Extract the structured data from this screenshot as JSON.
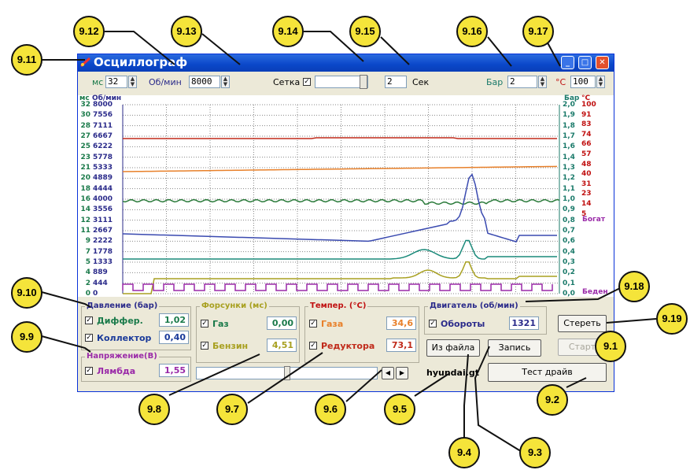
{
  "window": {
    "title": "Осциллограф",
    "min_glyph": "_",
    "max_glyph": "□",
    "close_glyph": "✕"
  },
  "toolbar": {
    "ms_label": "мс",
    "ms_value": "32",
    "rpm_label": "Об/мин",
    "rpm_value": "8000",
    "grid_label": "Сетка",
    "grid_checked": "✓",
    "sec_value": "2",
    "sec_label": "Сек",
    "bar_label": "Бар",
    "bar_value": "2",
    "temp_label": "°С",
    "temp_value": "100"
  },
  "plot": {
    "left_headers": {
      "ms": "мс",
      "rpm": "Об/мин"
    },
    "right_headers": {
      "bar": "Бар",
      "temp": "°С"
    },
    "ms_ticks": [
      "32",
      "30",
      "28",
      "27",
      "25",
      "23",
      "21",
      "20",
      "18",
      "16",
      "14",
      "12",
      "11",
      "9",
      "7",
      "5",
      "4",
      "2",
      "0"
    ],
    "rpm_ticks": [
      "8000",
      "7556",
      "7111",
      "6667",
      "6222",
      "5778",
      "5333",
      "4889",
      "4444",
      "4000",
      "3556",
      "3111",
      "2667",
      "2222",
      "1778",
      "1333",
      "889",
      "444",
      "0"
    ],
    "bar_ticks": [
      "2,0",
      "1,9",
      "1,8",
      "1,7",
      "1,6",
      "1,4",
      "1,3",
      "1,2",
      "1,1",
      "1,0",
      "0,9",
      "0,8",
      "0,7",
      "0,6",
      "0,4",
      "0,3",
      "0,2",
      "0,1",
      "0,0"
    ],
    "temp_ticks": [
      "100",
      "91",
      "83",
      "74",
      "66",
      "57",
      "48",
      "40",
      "31",
      "23",
      "14",
      "5"
    ],
    "rich_label": "Богат",
    "lean_label": "Беден"
  },
  "groups": {
    "pressure": {
      "title": "Давление (бар)",
      "diff_label": "Диффер.",
      "diff_value": "1,02",
      "coll_label": "Коллектор",
      "coll_value": "0,40"
    },
    "voltage": {
      "title": "Напряжение(В)",
      "lambda_label": "Лямбда",
      "lambda_value": "1,55"
    },
    "injectors": {
      "title": "Форсунки (мс)",
      "gas_label": "Газ",
      "gas_value": "0,00",
      "petrol_label": "Бензин",
      "petrol_value": "4,51"
    },
    "temperature": {
      "title": "Темпер. (°С)",
      "gas_label": "Газа",
      "gas_value": "34,6",
      "reducer_label": "Редуктора",
      "reducer_value": "73,1"
    },
    "engine": {
      "title": "Двигатель (об/мин)",
      "rpm_label": "Обороты",
      "rpm_value": "1321"
    }
  },
  "checkmark": "✓",
  "buttons": {
    "erase": "Стереть",
    "start": "Старт",
    "from_file": "Из файла",
    "record": "Запись",
    "test_drive": "Тест драйв",
    "scroll_left": "◀",
    "scroll_right": "▶"
  },
  "filename": "hyundai.gt",
  "callouts": [
    "9.11",
    "9.12",
    "9.13",
    "9.14",
    "9.15",
    "9.16",
    "9.17",
    "9.18",
    "9.19",
    "9.1",
    "9.2",
    "9.3",
    "9.4",
    "9.5",
    "9.6",
    "9.7",
    "9.8",
    "9.9",
    "9.10"
  ],
  "colors": {
    "window_bg": "#ece9d8",
    "title_blue": "#0a47c9",
    "axis_ms": "#1a7a4a",
    "axis_rpm": "#2a2a8a",
    "axis_bar": "#1a7a6a",
    "axis_temp": "#c01010",
    "callout_fill": "#f5e43a",
    "trace_red": "#c02a1a",
    "trace_orange": "#e8802a",
    "trace_green": "#2a7a3a",
    "trace_blue": "#3a4ab0",
    "trace_teal": "#1a8a7a",
    "trace_olive": "#a8a020",
    "trace_purple": "#9a2aa8"
  }
}
